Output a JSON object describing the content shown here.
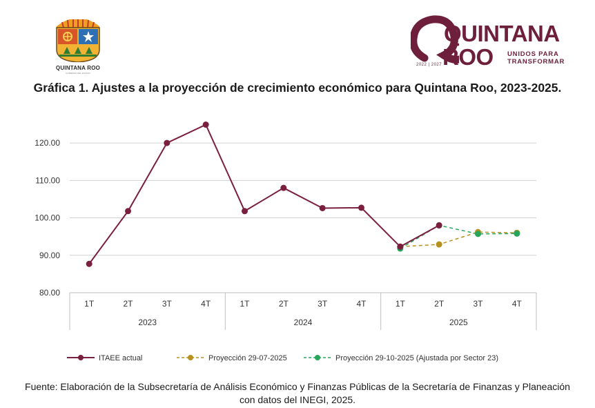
{
  "logo_left": {
    "caption": "QUINTANA ROO",
    "sub": "GOBIERNO DEL ESTADO"
  },
  "logo_right": {
    "word1": "QUINTANA",
    "word2": "ROO",
    "tagline1": "UNIDOS PARA",
    "tagline2": "TRANSFORMAR",
    "years": "2022 | 2027"
  },
  "title": "Gráfica 1. Ajustes a la proyección de crecimiento económico para Quintana Roo, 2023-2025.",
  "source": "Fuente: Elaboración de la Subsecretaría de Análisis Económico y Finanzas Públicas de la Secretaría de Finanzas y Planeación con datos del INEGI, 2025.",
  "chart_data": {
    "type": "line",
    "title": "Gráfica 1. Ajustes a la proyección de crecimiento económico para Quintana Roo, 2023-2025.",
    "ylim": [
      80,
      125
    ],
    "yticks": [
      80,
      90,
      100,
      110,
      120
    ],
    "ytick_labels": [
      "80.00",
      "90.00",
      "100.00",
      "110.00",
      "120.00"
    ],
    "categories": [
      "1T",
      "2T",
      "3T",
      "4T",
      "1T",
      "2T",
      "3T",
      "4T",
      "1T",
      "2T",
      "3T",
      "4T"
    ],
    "groups": [
      {
        "label": "2023",
        "start": 0,
        "count": 4
      },
      {
        "label": "2024",
        "start": 4,
        "count": 4
      },
      {
        "label": "2025",
        "start": 8,
        "count": 4
      }
    ],
    "series": [
      {
        "name": "ITAEE actual",
        "color": "#7a1f3d",
        "dash": false,
        "values": [
          87.7,
          101.8,
          120.0,
          124.9,
          101.8,
          108.0,
          102.6,
          102.7,
          92.3,
          98.0,
          null,
          null
        ]
      },
      {
        "name": "Proyección 29-07-2025",
        "color": "#b8901f",
        "dash": true,
        "values": [
          null,
          null,
          null,
          null,
          null,
          null,
          null,
          null,
          92.3,
          92.9,
          96.2,
          96.0
        ]
      },
      {
        "name": "Proyección 29-10-2025 (Ajustada por Sector 23)",
        "color": "#27a55a",
        "dash": true,
        "values": [
          null,
          null,
          null,
          null,
          null,
          null,
          null,
          null,
          91.8,
          98.0,
          95.7,
          95.8
        ]
      }
    ],
    "legend_position": "bottom",
    "grid": true
  }
}
